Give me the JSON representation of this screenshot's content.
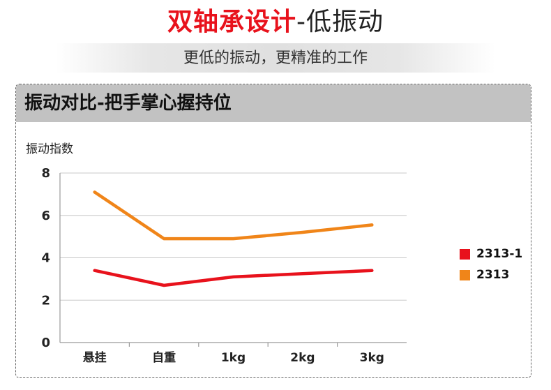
{
  "header": {
    "headline_main": "双轴承设计",
    "headline_rest": "-低振动",
    "subtitle": "更低的振动，更精准的工作"
  },
  "chart_data": {
    "type": "line",
    "title": "振动对比-把手掌心握持位",
    "ylabel": "振动指数",
    "xlabel": "",
    "categories": [
      "悬挂",
      "自重",
      "1kg",
      "2kg",
      "3kg"
    ],
    "ylim": [
      0,
      8
    ],
    "yticks": [
      0,
      2,
      4,
      6,
      8
    ],
    "grid": true,
    "legend_position": "right",
    "series": [
      {
        "name": "2313-1",
        "color": "#e8121c",
        "values": [
          3.4,
          2.7,
          3.1,
          3.25,
          3.4
        ]
      },
      {
        "name": "2313",
        "color": "#f08519",
        "values": [
          7.1,
          4.9,
          4.9,
          5.2,
          5.55
        ]
      }
    ]
  }
}
